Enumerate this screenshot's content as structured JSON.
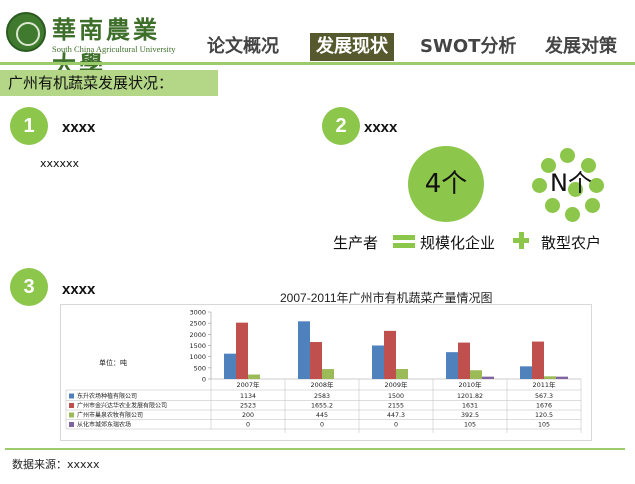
{
  "header": {
    "logo_cn": "華南農業大學",
    "logo_en": "South China Agricultural University",
    "tabs": [
      {
        "label": "论文概况",
        "active": false
      },
      {
        "label": "发展现状",
        "active": true
      },
      {
        "label": "SWOT分析",
        "active": false
      },
      {
        "label": "发展对策",
        "active": false
      }
    ]
  },
  "section": {
    "title": "广州有机蔬菜发展状况："
  },
  "items": [
    {
      "num": "1",
      "title": "xxxx",
      "body": "xxxxxx"
    },
    {
      "num": "2",
      "title": "xxxx"
    },
    {
      "num": "3",
      "title": "xxxx"
    }
  ],
  "producers": {
    "big_circle": "4个",
    "small_cluster": "N个",
    "label": "生产者",
    "legend_1": "规模化企业",
    "legend_2": "散型农户"
  },
  "chart_data": {
    "type": "bar",
    "title": "2007-2011年广州市有机蔬菜产量情况图",
    "ylabel": "单位：吨",
    "ylim": [
      0,
      3000
    ],
    "yticks": [
      0,
      500,
      1000,
      1500,
      2000,
      2500,
      3000
    ],
    "categories": [
      "2007年",
      "2008年",
      "2009年",
      "2010年",
      "2011年"
    ],
    "series": [
      {
        "name": "东升农场种植有限公司",
        "color": "#4f81bd",
        "values": [
          1134,
          2583,
          1500,
          1201.82,
          567.3
        ]
      },
      {
        "name": "广州市金兴达华农业发展有限公司",
        "color": "#c0504d",
        "values": [
          2523,
          1655.2,
          2155,
          1631,
          1676
        ]
      },
      {
        "name": "广州市巢泉农牧有限公司",
        "color": "#9bbb59",
        "values": [
          200,
          445,
          447.3,
          392.5,
          120.5
        ]
      },
      {
        "name": "从化市城郊东瑞农场",
        "color": "#8064a2",
        "values": [
          0,
          0,
          0,
          105,
          105
        ]
      }
    ],
    "table_cells": [
      [
        "1134",
        "2583",
        "1500",
        "1201.82",
        "567.3"
      ],
      [
        "2523",
        "1655.2",
        "2155",
        "1631",
        "1676"
      ],
      [
        "200",
        "445",
        "447.3",
        "392.5",
        "120.5"
      ],
      [
        "0",
        "0",
        "0",
        "105",
        "105"
      ]
    ]
  },
  "footer": {
    "source": "数据来源：xxxxx"
  },
  "colors": {
    "accent_green": "#8cc64b",
    "tab_active_bg": "#56582e",
    "section_bar": "#b3d786"
  }
}
